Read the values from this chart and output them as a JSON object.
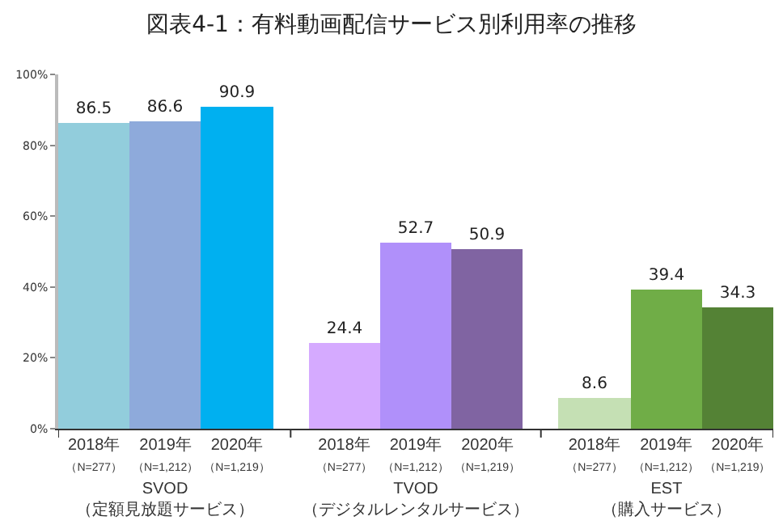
{
  "chart_data": {
    "type": "bar",
    "title": "図表4-1：有料動画配信サービス別利用率の推移",
    "categories": [
      "2018年（N=277）",
      "2019年（N=1,212）",
      "2020年（N=1,219）",
      "2018年（N=277）",
      "2019年（N=1,212）",
      "2020年（N=1,219）",
      "2018年（N=277）",
      "2019年（N=1,212）",
      "2020年（N=1,219）"
    ],
    "values": [
      86.5,
      86.6,
      90.9,
      24.4,
      52.7,
      50.9,
      8.6,
      39.4,
      34.3
    ],
    "colors": [
      "#92cddc",
      "#8eaadb",
      "#00b0f0",
      "#d5aaff",
      "#b090fa",
      "#8064a2",
      "#c5e0b4",
      "#70ad47",
      "#548235"
    ],
    "ylim": [
      0,
      100
    ],
    "yticks": [
      {
        "value": 0,
        "label": "0%"
      },
      {
        "value": 20,
        "label": "20%"
      },
      {
        "value": 40,
        "label": "40%"
      },
      {
        "value": 60,
        "label": "60%"
      },
      {
        "value": 80,
        "label": "80%"
      },
      {
        "value": 100,
        "label": "100%"
      }
    ],
    "annotations": [
      "SVOD\n（定額見放題サービス）",
      "TVOD\n（デジタルレンタルサービス）",
      "EST\n（購入サービス）"
    ],
    "data_labels": true
  }
}
